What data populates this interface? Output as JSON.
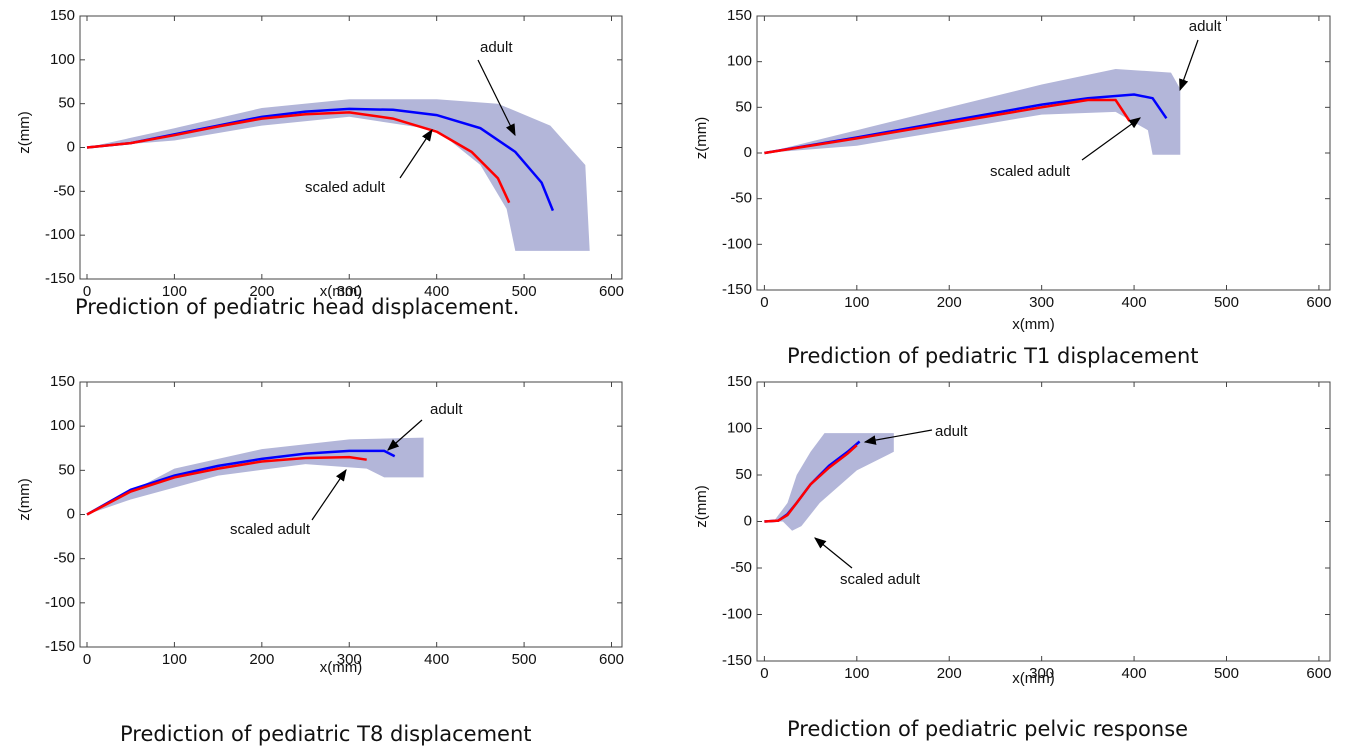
{
  "chart_data": [
    {
      "type": "line",
      "title": "Prediction of pediatric head displacement.",
      "xlabel": "x(mm)",
      "ylabel": "z(mm)",
      "xlim": [
        -8,
        612
      ],
      "ylim": [
        -150,
        150
      ],
      "xticks": [
        0,
        100,
        200,
        300,
        400,
        500,
        600
      ],
      "yticks": [
        -150,
        -100,
        -50,
        0,
        50,
        100,
        150
      ],
      "corridor": {
        "color": "#b3b6d9",
        "x": [
          0,
          100,
          200,
          300,
          400,
          470,
          530,
          570,
          575,
          490,
          480,
          450,
          400,
          300,
          200,
          100,
          0
        ],
        "values": [
          0,
          22,
          45,
          55,
          55,
          50,
          25,
          -20,
          -118,
          -118,
          -70,
          -20,
          20,
          35,
          25,
          8,
          0
        ]
      },
      "series": [
        {
          "name": "adult",
          "color": "#0000ff",
          "x": [
            0,
            50,
            100,
            150,
            200,
            250,
            300,
            350,
            400,
            450,
            490,
            520,
            533
          ],
          "values": [
            0,
            5,
            15,
            25,
            35,
            41,
            44,
            43,
            37,
            22,
            -5,
            -40,
            -72
          ]
        },
        {
          "name": "scaled adult",
          "color": "#ff0000",
          "x": [
            0,
            50,
            100,
            150,
            200,
            250,
            300,
            350,
            400,
            440,
            470,
            483
          ],
          "values": [
            0,
            5,
            14,
            24,
            33,
            38,
            40,
            33,
            18,
            -5,
            -35,
            -63
          ]
        }
      ]
    },
    {
      "type": "line",
      "title": "Prediction of pediatric T1 displacement",
      "xlabel": "x(mm)",
      "ylabel": "z(mm)",
      "xlim": [
        -8,
        612
      ],
      "ylim": [
        -150,
        150
      ],
      "xticks": [
        0,
        100,
        200,
        300,
        400,
        500,
        600
      ],
      "yticks": [
        -150,
        -100,
        -50,
        0,
        50,
        100,
        150
      ],
      "corridor": {
        "color": "#b3b6d9",
        "x": [
          0,
          100,
          200,
          300,
          380,
          440,
          450,
          450,
          420,
          415,
          380,
          300,
          200,
          100,
          0
        ],
        "values": [
          0,
          25,
          50,
          75,
          92,
          88,
          70,
          -2,
          -2,
          25,
          45,
          42,
          25,
          8,
          0
        ]
      },
      "series": [
        {
          "name": "adult",
          "color": "#0000ff",
          "x": [
            0,
            100,
            200,
            300,
            350,
            400,
            420,
            435
          ],
          "values": [
            0,
            17,
            35,
            53,
            60,
            64,
            60,
            38
          ]
        },
        {
          "name": "scaled adult",
          "color": "#ff0000",
          "x": [
            0,
            100,
            200,
            300,
            350,
            380,
            395
          ],
          "values": [
            0,
            16,
            33,
            50,
            58,
            58,
            35
          ]
        }
      ]
    },
    {
      "type": "line",
      "title": "Prediction of pediatric T8 displacement",
      "xlabel": "x(mm)",
      "ylabel": "z(mm)",
      "xlim": [
        -8,
        612
      ],
      "ylim": [
        -150,
        150
      ],
      "xticks": [
        0,
        100,
        200,
        300,
        400,
        500,
        600
      ],
      "yticks": [
        -150,
        -100,
        -50,
        0,
        50,
        100,
        150
      ],
      "corridor": {
        "color": "#b3b6d9",
        "x": [
          0,
          100,
          200,
          300,
          385,
          385,
          340,
          320,
          250,
          150,
          50,
          0
        ],
        "values": [
          0,
          52,
          74,
          85,
          87,
          42,
          42,
          52,
          57,
          44,
          17,
          0
        ]
      },
      "series": [
        {
          "name": "adult",
          "color": "#0000ff",
          "x": [
            0,
            50,
            100,
            150,
            200,
            250,
            300,
            340,
            352
          ],
          "values": [
            0,
            28,
            44,
            55,
            63,
            69,
            72,
            72,
            66
          ]
        },
        {
          "name": "scaled adult",
          "color": "#ff0000",
          "x": [
            0,
            50,
            100,
            150,
            200,
            250,
            300,
            320
          ],
          "values": [
            0,
            26,
            42,
            52,
            60,
            64,
            65,
            62
          ]
        }
      ]
    },
    {
      "type": "line",
      "title": "Prediction of pediatric pelvic response",
      "xlabel": "x(mm)",
      "ylabel": "z(mm)",
      "xlim": [
        -8,
        612
      ],
      "ylim": [
        -150,
        150
      ],
      "xticks": [
        0,
        100,
        200,
        300,
        400,
        500,
        600
      ],
      "yticks": [
        -150,
        -100,
        -50,
        0,
        50,
        100,
        150
      ],
      "corridor": {
        "color": "#b3b6d9",
        "x": [
          10,
          25,
          35,
          50,
          65,
          140,
          140,
          100,
          60,
          40,
          30,
          20,
          10
        ],
        "values": [
          0,
          20,
          50,
          75,
          95,
          95,
          75,
          55,
          20,
          -5,
          -10,
          0,
          0
        ]
      },
      "series": [
        {
          "name": "adult",
          "color": "#0000ff",
          "x": [
            0,
            15,
            25,
            35,
            50,
            70,
            90,
            103
          ],
          "values": [
            0,
            1,
            8,
            20,
            40,
            60,
            75,
            86
          ]
        },
        {
          "name": "scaled adult",
          "color": "#ff0000",
          "x": [
            0,
            15,
            25,
            35,
            50,
            70,
            90,
            100
          ],
          "values": [
            0,
            1,
            7,
            20,
            40,
            58,
            73,
            82
          ]
        }
      ]
    }
  ]
}
